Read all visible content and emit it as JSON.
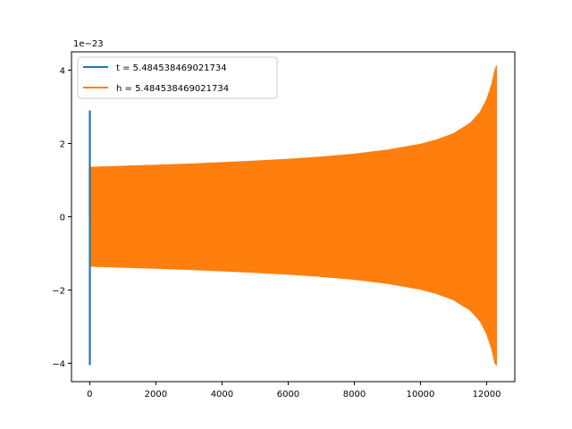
{
  "chart_data": {
    "type": "line",
    "title": "",
    "xlabel": "",
    "ylabel": "",
    "y_offset_label": "1e−23",
    "xlim": [
      -550,
      12850
    ],
    "ylim": [
      -4.5,
      4.5
    ],
    "x_ticks": [
      {
        "value": 0,
        "label": "0"
      },
      {
        "value": 2000,
        "label": "2000"
      },
      {
        "value": 4000,
        "label": "4000"
      },
      {
        "value": 6000,
        "label": "6000"
      },
      {
        "value": 8000,
        "label": "8000"
      },
      {
        "value": 10000,
        "label": "10000"
      },
      {
        "value": 12000,
        "label": "12000"
      }
    ],
    "y_ticks": [
      {
        "value": -4,
        "label": "−4"
      },
      {
        "value": -2,
        "label": "−2"
      },
      {
        "value": 0,
        "label": "0"
      },
      {
        "value": 2,
        "label": "2"
      },
      {
        "value": 4,
        "label": "4"
      }
    ],
    "grid": false,
    "legend_position": "top-left",
    "series": [
      {
        "name": "t = 5.484538469021734",
        "color": "#1f77b4",
        "style": "short burst near x = 0",
        "x_range": [
          0,
          10
        ],
        "y_max": 2.9,
        "y_min": -4.05
      },
      {
        "name": "h = 5.484538469021734",
        "color": "#ff7f0e",
        "style": "filled oscillation envelope (chirp)",
        "envelope": [
          {
            "x": 0,
            "upper": 1.35,
            "lower": -1.35
          },
          {
            "x": 1000,
            "upper": 1.38,
            "lower": -1.38
          },
          {
            "x": 2000,
            "upper": 1.41,
            "lower": -1.41
          },
          {
            "x": 3000,
            "upper": 1.44,
            "lower": -1.44
          },
          {
            "x": 4000,
            "upper": 1.48,
            "lower": -1.48
          },
          {
            "x": 5000,
            "upper": 1.52,
            "lower": -1.52
          },
          {
            "x": 6000,
            "upper": 1.57,
            "lower": -1.57
          },
          {
            "x": 7000,
            "upper": 1.63,
            "lower": -1.63
          },
          {
            "x": 8000,
            "upper": 1.71,
            "lower": -1.71
          },
          {
            "x": 9000,
            "upper": 1.82,
            "lower": -1.82
          },
          {
            "x": 10000,
            "upper": 1.98,
            "lower": -1.98
          },
          {
            "x": 10500,
            "upper": 2.1,
            "lower": -2.1
          },
          {
            "x": 11000,
            "upper": 2.27,
            "lower": -2.27
          },
          {
            "x": 11500,
            "upper": 2.55,
            "lower": -2.55
          },
          {
            "x": 11800,
            "upper": 2.85,
            "lower": -2.85
          },
          {
            "x": 12000,
            "upper": 3.2,
            "lower": -3.2
          },
          {
            "x": 12150,
            "upper": 3.6,
            "lower": -3.6
          },
          {
            "x": 12250,
            "upper": 4.0,
            "lower": -4.0
          },
          {
            "x": 12300,
            "upper": 4.12,
            "lower": -4.05
          }
        ]
      }
    ]
  }
}
